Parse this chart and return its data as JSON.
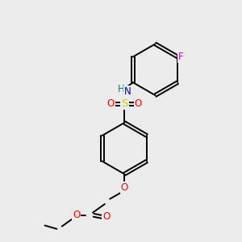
{
  "background_color": "#ebebeb",
  "bond_color": "#000000",
  "atom_colors": {
    "N": "#0000cd",
    "H": "#008080",
    "S": "#cccc00",
    "O": "#ff0000",
    "F": "#cc00cc",
    "C": "#000000"
  },
  "figsize": [
    3.0,
    3.0
  ],
  "dpi": 100
}
